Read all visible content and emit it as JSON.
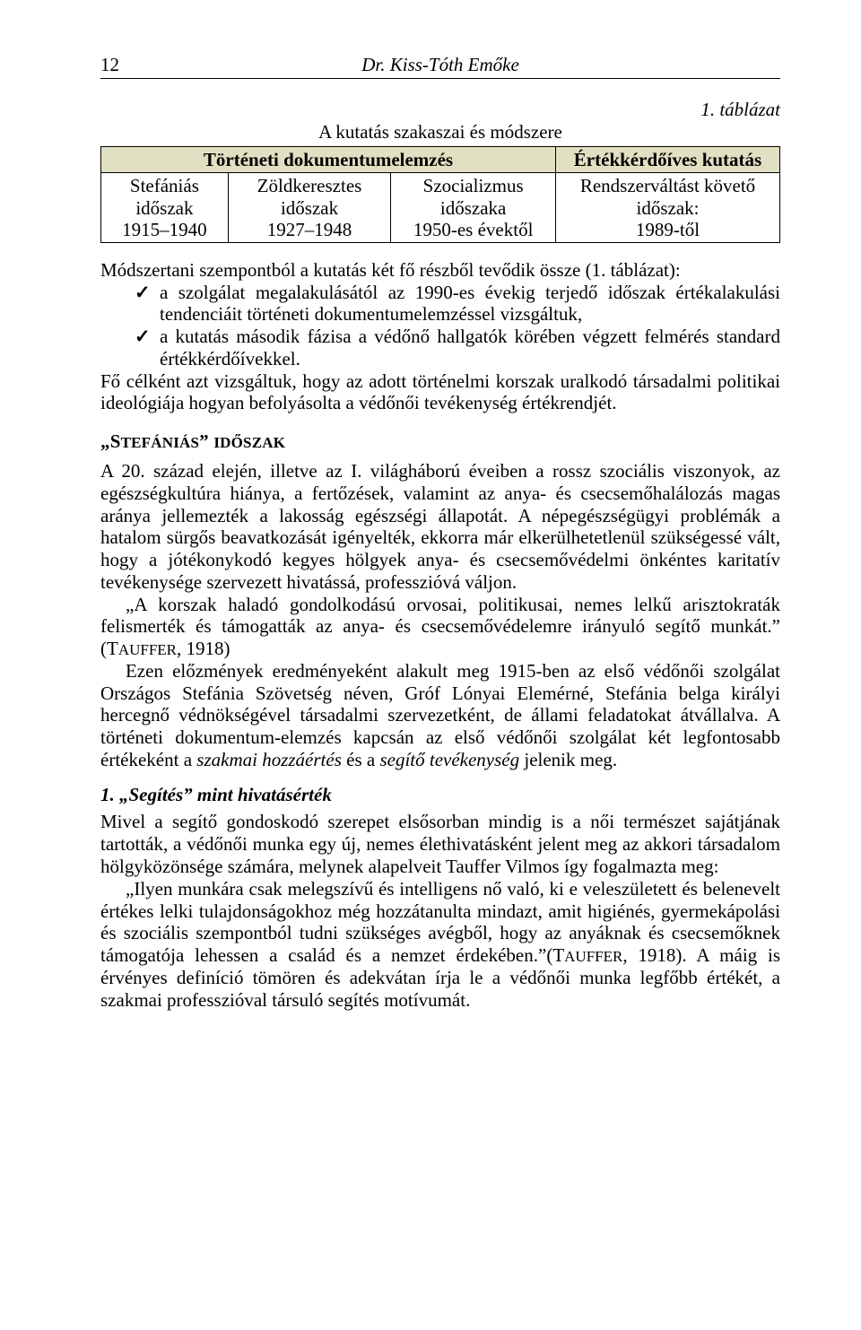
{
  "header": {
    "page_number": "12",
    "author": "Dr. Kiss-Tóth Emőke"
  },
  "table": {
    "title": "1. táblázat",
    "caption": "A kutatás szakaszai és módszere",
    "header_row": {
      "left": "Történeti dokumentumelemzés",
      "right": "Értékkérdőíves kutatás"
    },
    "columns": [
      {
        "line1": "Stefániás időszak",
        "line2": "1915–1940"
      },
      {
        "line1": "Zöldkeresztes időszak",
        "line2": "1927–1948"
      },
      {
        "line1": "Szocializmus időszaka",
        "line2": "1950-es évektől"
      },
      {
        "line1": "Rendszerváltást követő időszak:",
        "line2": "1989-től"
      }
    ],
    "colors": {
      "header_bg": "#e2e0c2",
      "border": "#000000",
      "cell_bg": "#ffffff"
    }
  },
  "method_intro": "Módszertani szempontból a kutatás két fő részből tevődik össze (1. táblázat):",
  "bullets": [
    "a szolgálat megalakulásától az 1990-es évekig terjedő időszak értékalakulási tendenciáit történeti dokumentumelemzéssel vizsgáltuk,",
    "a kutatás második fázisa a védőnő hallgatók körében végzett felmérés standard értékkérdőívekkel."
  ],
  "method_tail": "Fő célként azt vizsgáltuk, hogy az adott történelmi korszak uralkodó társadalmi politikai ideológiája hogyan befolyásolta a védőnői tevékenység értékrendjét.",
  "section1": {
    "prefix": "„S",
    "small": "TEFÁNIÁS",
    "mid": "” ",
    "small2": "IDŐSZAK"
  },
  "para1": "A 20. század elején, illetve az I. világháború éveiben a rossz szociális viszonyok, az egészségkultúra hiánya, a fertőzések, valamint az anya- és csecsemőhalálozás magas aránya jellemezték a lakosság egészségi állapotát. A népegészségügyi problémák a hatalom sürgős beavatkozását igényelték, ekkorra már elkerülhetetlenül szükségessé vált, hogy a jótékonykodó kegyes hölgyek anya- és csecsemővédelmi önkéntes karitatív tevékenysége szervezett hivatássá, professzióvá váljon.",
  "para2a": "„A korszak haladó gondolkodású orvosai, politikusai, nemes lelkű arisztokraták felismerték és támogatták az anya- és csecsemővédelemre irányuló segítő munkát.” (T",
  "para2b": "AUFFER",
  "para2c": ", 1918)",
  "para3": "Ezen előzmények eredményeként alakult meg 1915-ben az első védőnői szolgálat Országos Stefánia Szövetség néven, Gróf Lónyai Elemérné, Stefánia belga királyi hercegnő védnökségével társadalmi szervezetként, de állami feladatokat átvállalva. A történeti dokumentum-elemzés kapcsán az első védőnői szolgálat két legfontosabb értékeként a ",
  "para3_it1": "szakmai hozzáértés",
  "para3_mid": " és a ",
  "para3_it2": "segítő tevékenység",
  "para3_end": " jelenik meg.",
  "subhead": "1.  „Segítés” mint hivatásérték",
  "para4": "Mivel a segítő gondoskodó szerepet elsősorban mindig is a női természet sajátjának tartották, a védőnői munka egy új, nemes élethivatásként jelent meg az akkori társadalom hölgyközönsége számára, melynek alapelveit Tauffer Vilmos így fogalmazta meg:",
  "para5a": "„Ilyen munkára csak melegszívű és intelligens nő való, ki e veleszületett és belenevelt értékes lelki tulajdonságokhoz még hozzátanulta mindazt, amit higiénés, gyermekápolási és szociális szempontból tudni szükséges avégből, hogy az anyáknak és csecsemőknek támogatója lehessen a család és a nemzet érdekében.”(T",
  "para5b": "AUFFER",
  "para5c": ", 1918). A máig is érvényes definíció tömören és adekvátan írja le a védőnői munka legfőbb értékét, a szakmai professzióval társuló segítés motívumát."
}
